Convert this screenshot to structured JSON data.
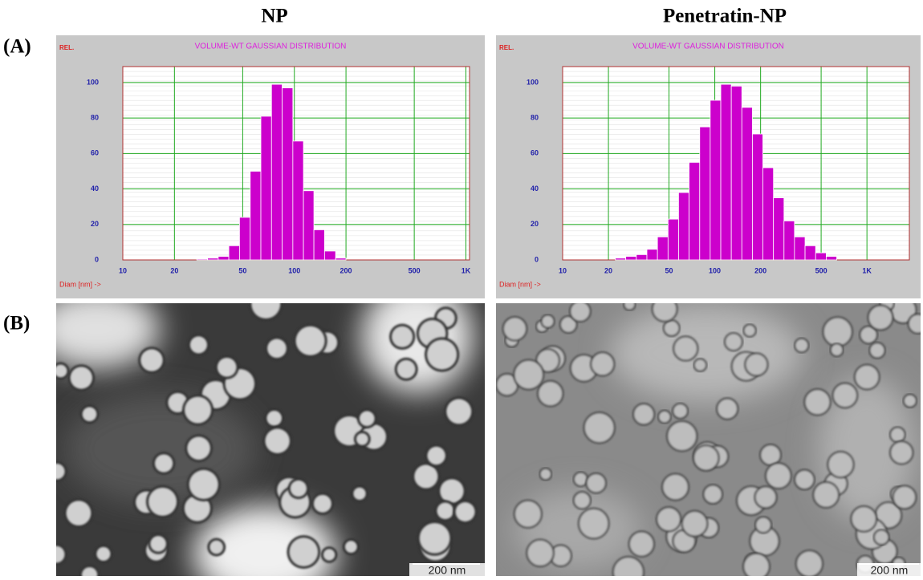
{
  "labels": {
    "panel_a": "(A)",
    "panel_b": "(B)"
  },
  "headings": [
    "NP",
    "Penetratin-NP"
  ],
  "scale_bars": [
    "200 nm",
    "200 nm"
  ],
  "chart_data": [
    {
      "type": "histogram",
      "title": "VOLUME-WT GAUSSIAN DISTRIBUTION",
      "y_label": "REL.",
      "x_label": "Diam [nm] ->",
      "bins": [
        27,
        31.2,
        36,
        41.5,
        47.9,
        55.3,
        63.8,
        73.6,
        84.9,
        98,
        113,
        130,
        150,
        174,
        200
      ],
      "values": [
        0.5,
        1,
        2,
        8,
        24,
        50,
        81,
        99,
        97,
        67,
        39,
        17,
        5,
        1
      ],
      "color": "#cc00cc",
      "log_x": true,
      "grid": true,
      "xlim": [
        10,
        1050
      ],
      "xticks": [
        10,
        20,
        50,
        100,
        200,
        500,
        {
          "value": 1000,
          "label": "1K"
        }
      ],
      "ylim": [
        0,
        109
      ],
      "yticks": [
        0,
        20,
        40,
        60,
        80,
        100
      ]
    },
    {
      "type": "histogram",
      "title": "VOLUME-WT GAUSSIAN DISTRIBUTION",
      "y_label": "REL.",
      "x_label": "Diam [nm] ->",
      "bins": [
        22.2,
        26,
        30.5,
        35.8,
        42,
        49.3,
        57.8,
        67.8,
        79.6,
        93.3,
        109.5,
        128.4,
        150.6,
        176.7,
        207,
        243,
        285,
        334,
        392,
        460,
        540,
        633
      ],
      "values": [
        1,
        2,
        3,
        6,
        13,
        23,
        38,
        55,
        75,
        90,
        99,
        98,
        86,
        71,
        52,
        35,
        22,
        13,
        8,
        4,
        2
      ],
      "color": "#cc00cc",
      "log_x": true,
      "grid": true,
      "xlim": [
        10,
        1900
      ],
      "xticks": [
        10,
        20,
        50,
        100,
        200,
        500,
        {
          "value": 1000,
          "label": "1K"
        }
      ],
      "ylim": [
        0,
        109
      ],
      "yticks": [
        0,
        20,
        40,
        60,
        80,
        100
      ]
    }
  ]
}
